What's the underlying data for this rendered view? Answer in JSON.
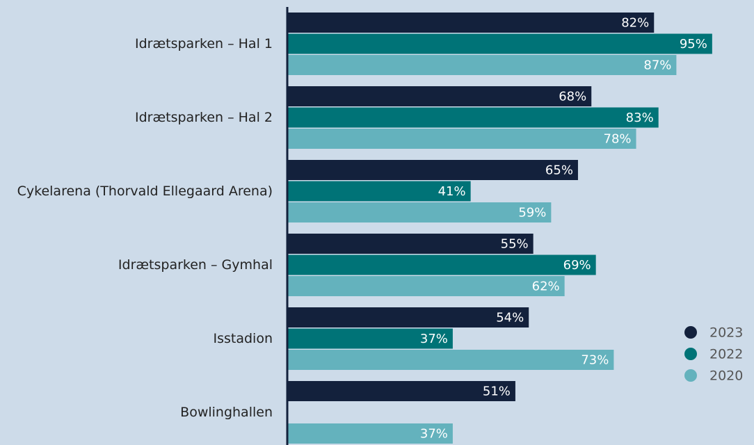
{
  "chart_data": {
    "type": "bar",
    "orientation": "horizontal",
    "categories": [
      "Idrætsparken – Hal 1",
      "Idrætsparken – Hal 2",
      "Cykelarena (Thorvald Ellegaard Arena)",
      "Idrætsparken – Gymhal",
      "Isstadion",
      "Bowlinghallen"
    ],
    "series": [
      {
        "name": "2023",
        "color": "#13213c",
        "values": [
          82,
          68,
          65,
          55,
          54,
          51
        ],
        "value_labels": [
          "82%",
          "68%",
          "65%",
          "55%",
          "54%",
          "51%"
        ]
      },
      {
        "name": "2022",
        "color": "#007377",
        "values": [
          95,
          83,
          41,
          69,
          37,
          null
        ],
        "value_labels": [
          "95%",
          "83%",
          "41%",
          "69%",
          "37%",
          null
        ]
      },
      {
        "name": "2020",
        "color": "#64b2bd",
        "values": [
          87,
          78,
          59,
          62,
          73,
          37
        ],
        "value_labels": [
          "87%",
          "78%",
          "59%",
          "62%",
          "73%",
          "37%"
        ]
      }
    ],
    "xlim": [
      0,
      100
    ],
    "legend": "lower right"
  }
}
